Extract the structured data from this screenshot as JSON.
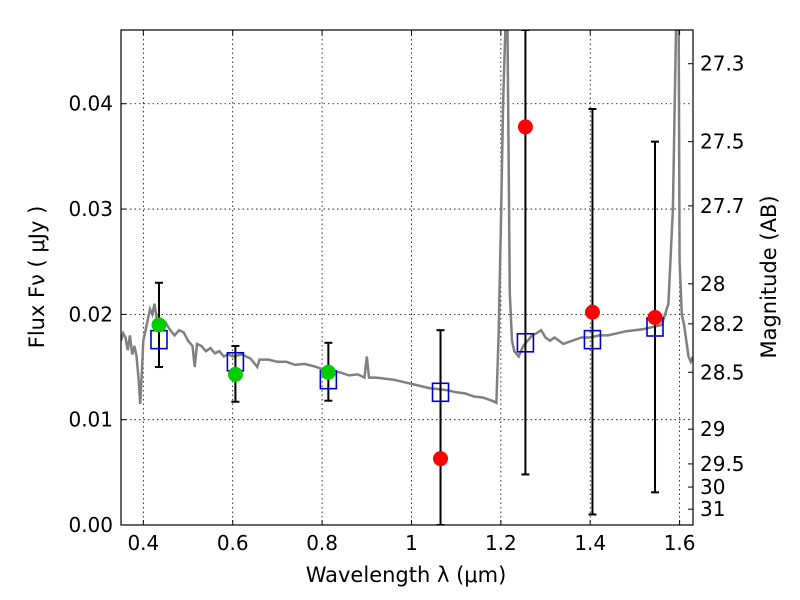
{
  "chart_data": {
    "type": "scatter",
    "xlabel": "Wavelength  λ (μm)",
    "ylabel": "Flux  Fν  ( μJy )",
    "y2label": "Magnitude (AB)",
    "xlim": [
      0.35,
      1.63
    ],
    "ylim": [
      0.0,
      0.047
    ],
    "grid": true,
    "x_ticks": [
      0.4,
      0.6,
      0.8,
      1.0,
      1.2,
      1.4,
      1.6
    ],
    "x_tick_labels": [
      "0.4",
      "0.6",
      "0.8",
      "1",
      "1.2",
      "1.4",
      "1.6"
    ],
    "y_ticks": [
      0.0,
      0.01,
      0.02,
      0.03,
      0.04
    ],
    "y_tick_labels": [
      "0.00",
      "0.01",
      "0.02",
      "0.03",
      "0.04"
    ],
    "y2_ticks": [
      {
        "label": "27.3",
        "flux": 0.0438
      },
      {
        "label": "27.5",
        "flux": 0.0364
      },
      {
        "label": "27.7",
        "flux": 0.0303
      },
      {
        "label": "28",
        "flux": 0.0229
      },
      {
        "label": "28.2",
        "flux": 0.0191
      },
      {
        "label": "28.5",
        "flux": 0.0145
      },
      {
        "label": "29",
        "flux": 0.0091
      },
      {
        "label": "29.5",
        "flux": 0.0058
      },
      {
        "label": "30",
        "flux": 0.0036
      },
      {
        "label": "31",
        "flux": 0.0015
      }
    ],
    "series": [
      {
        "marker": "circle",
        "color": "#00cc00",
        "points": [
          {
            "x": 0.435,
            "y": 0.019,
            "err_low": 0.015,
            "err_high": 0.023
          },
          {
            "x": 0.606,
            "y": 0.0143,
            "err_low": 0.0117,
            "err_high": 0.017
          },
          {
            "x": 0.814,
            "y": 0.0145,
            "err_low": 0.0118,
            "err_high": 0.0173
          }
        ]
      },
      {
        "marker": "circle",
        "color": "#ff0000",
        "points": [
          {
            "x": 1.065,
            "y": 0.0063,
            "err_low": 0.0,
            "err_high": 0.0185
          },
          {
            "x": 1.255,
            "y": 0.0378,
            "err_low": 0.0048,
            "err_high": 0.047
          },
          {
            "x": 1.405,
            "y": 0.0202,
            "err_low": 0.001,
            "err_high": 0.0395
          },
          {
            "x": 1.545,
            "y": 0.0197,
            "err_low": 0.0031,
            "err_high": 0.0364
          }
        ]
      },
      {
        "marker": "open-square",
        "color": "#0000cc",
        "points": [
          {
            "x": 0.435,
            "y": 0.0176
          },
          {
            "x": 0.606,
            "y": 0.0155
          },
          {
            "x": 0.814,
            "y": 0.0138
          },
          {
            "x": 1.065,
            "y": 0.0126
          },
          {
            "x": 1.255,
            "y": 0.0173
          },
          {
            "x": 1.405,
            "y": 0.0176
          },
          {
            "x": 1.545,
            "y": 0.0188
          }
        ]
      },
      {
        "type": "line",
        "color": "#808080",
        "points": [
          [
            0.35,
            0.0175
          ],
          [
            0.355,
            0.0182
          ],
          [
            0.36,
            0.0178
          ],
          [
            0.365,
            0.0166
          ],
          [
            0.37,
            0.018
          ],
          [
            0.375,
            0.0162
          ],
          [
            0.38,
            0.017
          ],
          [
            0.385,
            0.016
          ],
          [
            0.39,
            0.0135
          ],
          [
            0.393,
            0.0115
          ],
          [
            0.396,
            0.014
          ],
          [
            0.4,
            0.0175
          ],
          [
            0.405,
            0.0185
          ],
          [
            0.41,
            0.0195
          ],
          [
            0.415,
            0.0205
          ],
          [
            0.42,
            0.02
          ],
          [
            0.425,
            0.021
          ],
          [
            0.43,
            0.0195
          ],
          [
            0.44,
            0.0188
          ],
          [
            0.45,
            0.0192
          ],
          [
            0.46,
            0.0185
          ],
          [
            0.47,
            0.018
          ],
          [
            0.48,
            0.0185
          ],
          [
            0.49,
            0.0183
          ],
          [
            0.5,
            0.0175
          ],
          [
            0.51,
            0.017
          ],
          [
            0.515,
            0.015
          ],
          [
            0.52,
            0.0172
          ],
          [
            0.53,
            0.017
          ],
          [
            0.54,
            0.0165
          ],
          [
            0.55,
            0.0168
          ],
          [
            0.56,
            0.0163
          ],
          [
            0.57,
            0.0165
          ],
          [
            0.58,
            0.016
          ],
          [
            0.59,
            0.0162
          ],
          [
            0.6,
            0.016
          ],
          [
            0.62,
            0.0162
          ],
          [
            0.64,
            0.0158
          ],
          [
            0.655,
            0.015
          ],
          [
            0.66,
            0.0157
          ],
          [
            0.68,
            0.0157
          ],
          [
            0.7,
            0.0155
          ],
          [
            0.72,
            0.0155
          ],
          [
            0.74,
            0.0152
          ],
          [
            0.76,
            0.0153
          ],
          [
            0.78,
            0.0151
          ],
          [
            0.8,
            0.0148
          ],
          [
            0.82,
            0.0146
          ],
          [
            0.84,
            0.0145
          ],
          [
            0.86,
            0.0142
          ],
          [
            0.88,
            0.0143
          ],
          [
            0.895,
            0.014
          ],
          [
            0.9,
            0.016
          ],
          [
            0.905,
            0.014
          ],
          [
            0.92,
            0.014
          ],
          [
            0.94,
            0.0139
          ],
          [
            0.96,
            0.0138
          ],
          [
            0.98,
            0.0136
          ],
          [
            1.0,
            0.0134
          ],
          [
            1.02,
            0.0132
          ],
          [
            1.04,
            0.013
          ],
          [
            1.06,
            0.0129
          ],
          [
            1.08,
            0.0128
          ],
          [
            1.1,
            0.0126
          ],
          [
            1.12,
            0.0125
          ],
          [
            1.14,
            0.0122
          ],
          [
            1.16,
            0.0121
          ],
          [
            1.18,
            0.0118
          ],
          [
            1.19,
            0.0116
          ],
          [
            1.195,
            0.018
          ],
          [
            1.2,
            0.028
          ],
          [
            1.205,
            0.04
          ],
          [
            1.21,
            0.047
          ],
          [
            1.215,
            0.047
          ],
          [
            1.22,
            0.022
          ],
          [
            1.225,
            0.0175
          ],
          [
            1.23,
            0.0165
          ],
          [
            1.24,
            0.016
          ],
          [
            1.25,
            0.017
          ],
          [
            1.26,
            0.0175
          ],
          [
            1.27,
            0.018
          ],
          [
            1.28,
            0.0182
          ],
          [
            1.29,
            0.0185
          ],
          [
            1.3,
            0.0178
          ],
          [
            1.31,
            0.0175
          ],
          [
            1.32,
            0.0178
          ],
          [
            1.34,
            0.0172
          ],
          [
            1.36,
            0.0175
          ],
          [
            1.38,
            0.0178
          ],
          [
            1.4,
            0.0178
          ],
          [
            1.42,
            0.018
          ],
          [
            1.44,
            0.018
          ],
          [
            1.46,
            0.0182
          ],
          [
            1.48,
            0.0184
          ],
          [
            1.5,
            0.0185
          ],
          [
            1.52,
            0.0186
          ],
          [
            1.54,
            0.0188
          ],
          [
            1.56,
            0.019
          ],
          [
            1.575,
            0.021
          ],
          [
            1.585,
            0.03
          ],
          [
            1.592,
            0.047
          ],
          [
            1.598,
            0.047
          ],
          [
            1.6,
            0.025
          ],
          [
            1.605,
            0.02
          ],
          [
            1.61,
            0.019
          ],
          [
            1.615,
            0.0175
          ],
          [
            1.62,
            0.016
          ],
          [
            1.625,
            0.0155
          ],
          [
            1.63,
            0.016
          ]
        ]
      }
    ]
  }
}
